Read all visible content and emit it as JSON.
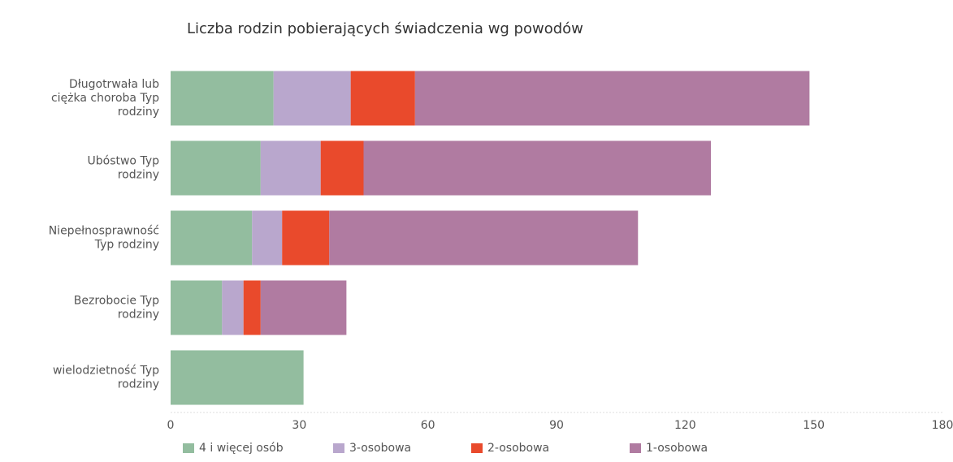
{
  "chart_data": {
    "type": "stacked_barh",
    "title": "Liczba rodzin pobierających świadczenia wg powodów",
    "categories": [
      "Długotrwała lub ciężka choroba Typ rodziny",
      "Ubóstwo Typ rodziny",
      "Niepełnosprawność Typ rodziny",
      "Bezrobocie Typ rodziny",
      "wielodzietność Typ rodziny"
    ],
    "series": [
      {
        "name": "4 i więcej osób",
        "color": "#93bd9f",
        "values": [
          24,
          21,
          19,
          12,
          31
        ]
      },
      {
        "name": "3-osobowa",
        "color": "#b9a7cd",
        "values": [
          18,
          14,
          7,
          5,
          0
        ]
      },
      {
        "name": "2-osobowa",
        "color": "#e94a2c",
        "values": [
          15,
          10,
          11,
          4,
          0
        ]
      },
      {
        "name": "1-osobowa",
        "color": "#b07ba1",
        "values": [
          92,
          81,
          72,
          20,
          0
        ]
      }
    ],
    "xlim": [
      0,
      180
    ],
    "xticks": [
      0,
      30,
      60,
      90,
      120,
      150,
      180
    ],
    "grid": false,
    "legend": "bottom"
  }
}
